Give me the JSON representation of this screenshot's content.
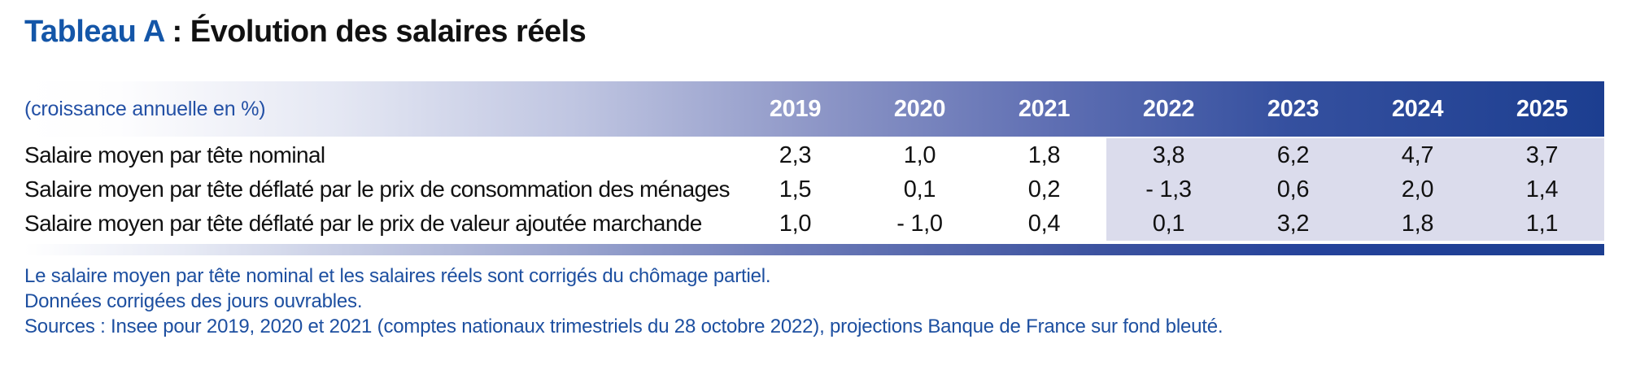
{
  "title": {
    "prefix": "Tableau A",
    "rest": " : Évolution des salaires réels"
  },
  "table": {
    "unit_label": "(croissance annuelle en %)",
    "years": [
      "2019",
      "2020",
      "2021",
      "2022",
      "2023",
      "2024",
      "2025"
    ],
    "projection_years_start": "2022",
    "projection_note": "projections sur fond bleuté",
    "rows": [
      {
        "label": "Salaire moyen par tête nominal",
        "values": [
          "2,3",
          "1,0",
          "1,8",
          "3,8",
          "6,2",
          "4,7",
          "3,7"
        ]
      },
      {
        "label": "Salaire moyen par tête déflaté par le prix de consommation des ménages",
        "values": [
          "1,5",
          "0,1",
          "0,2",
          "- 1,3",
          "0,6",
          "2,0",
          "1,4"
        ]
      },
      {
        "label": "Salaire moyen par tête déflaté par le prix de valeur ajoutée marchande",
        "values": [
          "1,0",
          "- 1,0",
          "0,4",
          "0,1",
          "3,2",
          "1,8",
          "1,1"
        ]
      }
    ]
  },
  "notes": [
    "Le salaire moyen par tête nominal et les salaires réels sont corrigés du chômage partiel.",
    "Données corrigées des jours ouvrables.",
    "Sources : Insee pour 2019, 2020 et 2021 (comptes nationaux trimestriels du 28 octobre 2022), projections Banque de France sur fond bleuté."
  ],
  "colors": {
    "accent_blue": "#1456A8",
    "header_dark_blue": "#1C3E90",
    "unit_label_blue": "#2350A5",
    "projection_bg": "#DBDCEC",
    "note_blue": "#1D4FA0"
  }
}
